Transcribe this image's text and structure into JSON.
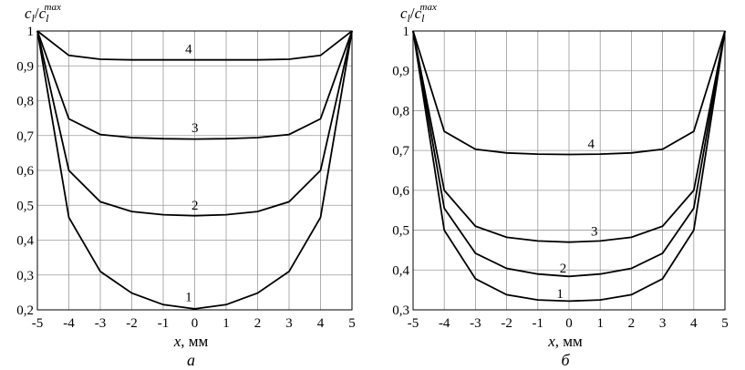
{
  "chart_data": [
    {
      "type": "line",
      "panel_label": "а",
      "xlabel_var": "x",
      "xlabel_unit": ", мм",
      "ylabel_main": "c",
      "ylabel_sub": "l",
      "ylabel_slash": "/",
      "ylabel_sup": "max",
      "xlim": [
        -5,
        5
      ],
      "ylim": [
        0.2,
        1.0
      ],
      "xticks": [
        "-5",
        "-4",
        "-3",
        "-2",
        "-1",
        "0",
        "1",
        "2",
        "3",
        "4",
        "5"
      ],
      "yticks": [
        "0,2",
        "0,3",
        "0,4",
        "0,5",
        "0,6",
        "0,7",
        "0,8",
        "0,9",
        "1"
      ],
      "grid": true,
      "x": [
        -5,
        -4,
        -3,
        -2,
        -1,
        0,
        1,
        2,
        3,
        4,
        5
      ],
      "series": [
        {
          "name": "1",
          "label_x": -0.3,
          "label_y": 0.225,
          "values": [
            1.0,
            0.465,
            0.31,
            0.248,
            0.215,
            0.203,
            0.215,
            0.248,
            0.31,
            0.465,
            1.0
          ]
        },
        {
          "name": "2",
          "label_x": -0.1,
          "label_y": 0.488,
          "values": [
            1.0,
            0.6,
            0.51,
            0.482,
            0.473,
            0.47,
            0.473,
            0.482,
            0.51,
            0.6,
            1.0
          ]
        },
        {
          "name": "3",
          "label_x": -0.1,
          "label_y": 0.71,
          "values": [
            1.0,
            0.748,
            0.703,
            0.694,
            0.691,
            0.69,
            0.691,
            0.694,
            0.703,
            0.748,
            1.0
          ]
        },
        {
          "name": "4",
          "label_x": -0.3,
          "label_y": 0.936,
          "values": [
            1.0,
            0.93,
            0.919,
            0.917,
            0.917,
            0.917,
            0.917,
            0.917,
            0.919,
            0.93,
            1.0
          ]
        }
      ]
    },
    {
      "type": "line",
      "panel_label": "б",
      "xlabel_var": "x",
      "xlabel_unit": ", мм",
      "ylabel_main": "c",
      "ylabel_sub": "l",
      "ylabel_slash": "/",
      "ylabel_sup": "max",
      "xlim": [
        -5,
        5
      ],
      "ylim": [
        0.3,
        1.0
      ],
      "xticks": [
        "-5",
        "-4",
        "-3",
        "-2",
        "-1",
        "0",
        "1",
        "2",
        "3",
        "4",
        "5"
      ],
      "yticks": [
        "0,3",
        "0,4",
        "0,5",
        "0,6",
        "0,7",
        "0,8",
        "0,9",
        "1"
      ],
      "grid": true,
      "x": [
        -5,
        -4,
        -3,
        -2,
        -1,
        0,
        1,
        2,
        3,
        4,
        5
      ],
      "series": [
        {
          "name": "1",
          "label_x": -0.4,
          "label_y": 0.33,
          "values": [
            1.0,
            0.5,
            0.378,
            0.338,
            0.325,
            0.322,
            0.325,
            0.338,
            0.378,
            0.5,
            1.0
          ]
        },
        {
          "name": "2",
          "label_x": -0.3,
          "label_y": 0.394,
          "values": [
            1.0,
            0.555,
            0.442,
            0.404,
            0.39,
            0.384,
            0.39,
            0.404,
            0.442,
            0.555,
            1.0
          ]
        },
        {
          "name": "3",
          "label_x": 0.7,
          "label_y": 0.486,
          "values": [
            1.0,
            0.6,
            0.51,
            0.482,
            0.473,
            0.47,
            0.473,
            0.482,
            0.51,
            0.6,
            1.0
          ]
        },
        {
          "name": "4",
          "label_x": 0.6,
          "label_y": 0.706,
          "values": [
            1.0,
            0.748,
            0.703,
            0.694,
            0.691,
            0.69,
            0.691,
            0.694,
            0.703,
            0.748,
            1.0
          ]
        }
      ]
    }
  ]
}
